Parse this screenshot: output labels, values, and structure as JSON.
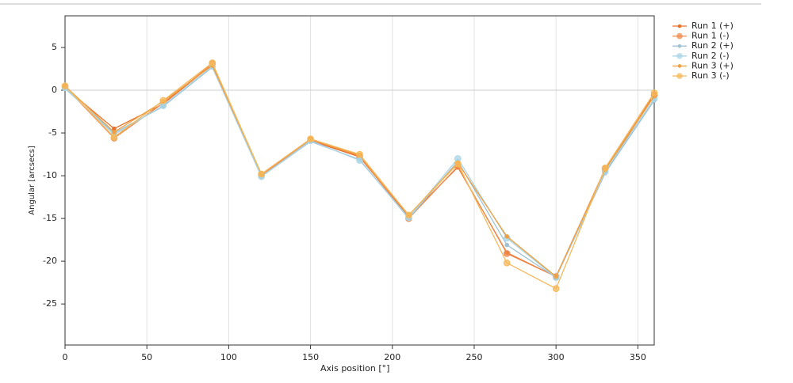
{
  "chart_data": {
    "type": "line",
    "x_label": "Axis position [°]",
    "y_label": "Angular [arcsecs]",
    "x": [
      0,
      30,
      60,
      90,
      120,
      150,
      180,
      210,
      240,
      270,
      300,
      330,
      360
    ],
    "series": [
      {
        "name": "Run 1 (+)",
        "color": "#e8702a",
        "values": [
          0.3,
          -4.5,
          -1.6,
          3.0,
          -9.9,
          -5.9,
          -7.8,
          -14.8,
          -9.0,
          -19.0,
          -21.8,
          -9.7,
          -0.4
        ]
      },
      {
        "name": "Run 1 (-)",
        "color": "#f0894a",
        "values": [
          0.4,
          -5.6,
          -1.5,
          3.1,
          -9.9,
          -5.8,
          -7.7,
          -15.0,
          -8.9,
          -19.1,
          -21.8,
          -9.2,
          -0.6
        ]
      },
      {
        "name": "Run 2 (+)",
        "color": "#9fc2d4",
        "values": [
          0.2,
          -5.0,
          -1.9,
          2.7,
          -10.1,
          -6.0,
          -8.1,
          -15.0,
          -8.3,
          -18.1,
          -21.9,
          -9.7,
          -1.2
        ]
      },
      {
        "name": "Run 2 (-)",
        "color": "#a9d5e6",
        "values": [
          0.3,
          -5.2,
          -1.8,
          2.8,
          -10.1,
          -5.9,
          -8.2,
          -14.9,
          -8.0,
          -17.3,
          -21.9,
          -9.5,
          -1.0
        ]
      },
      {
        "name": "Run 3 (+)",
        "color": "#f0a040",
        "values": [
          0.5,
          -4.9,
          -1.3,
          2.9,
          -9.8,
          -5.7,
          -7.6,
          -14.6,
          -8.5,
          -17.1,
          -21.8,
          -9.3,
          -0.7
        ]
      },
      {
        "name": "Run 3 (-)",
        "color": "#f5b85a",
        "values": [
          0.5,
          -5.5,
          -1.2,
          3.2,
          -9.8,
          -5.7,
          -7.5,
          -14.6,
          -8.6,
          -20.2,
          -23.2,
          -9.1,
          -0.3
        ]
      }
    ],
    "xlim": [
      0,
      360
    ],
    "xticks": [
      0,
      50,
      100,
      150,
      200,
      250,
      300,
      350
    ],
    "ylim": [
      -29.8,
      8.7
    ],
    "yticks": [
      -25,
      -20,
      -15,
      -10,
      -5,
      0,
      5
    ],
    "xgrid": true,
    "zero_line": true,
    "legend": "right"
  }
}
